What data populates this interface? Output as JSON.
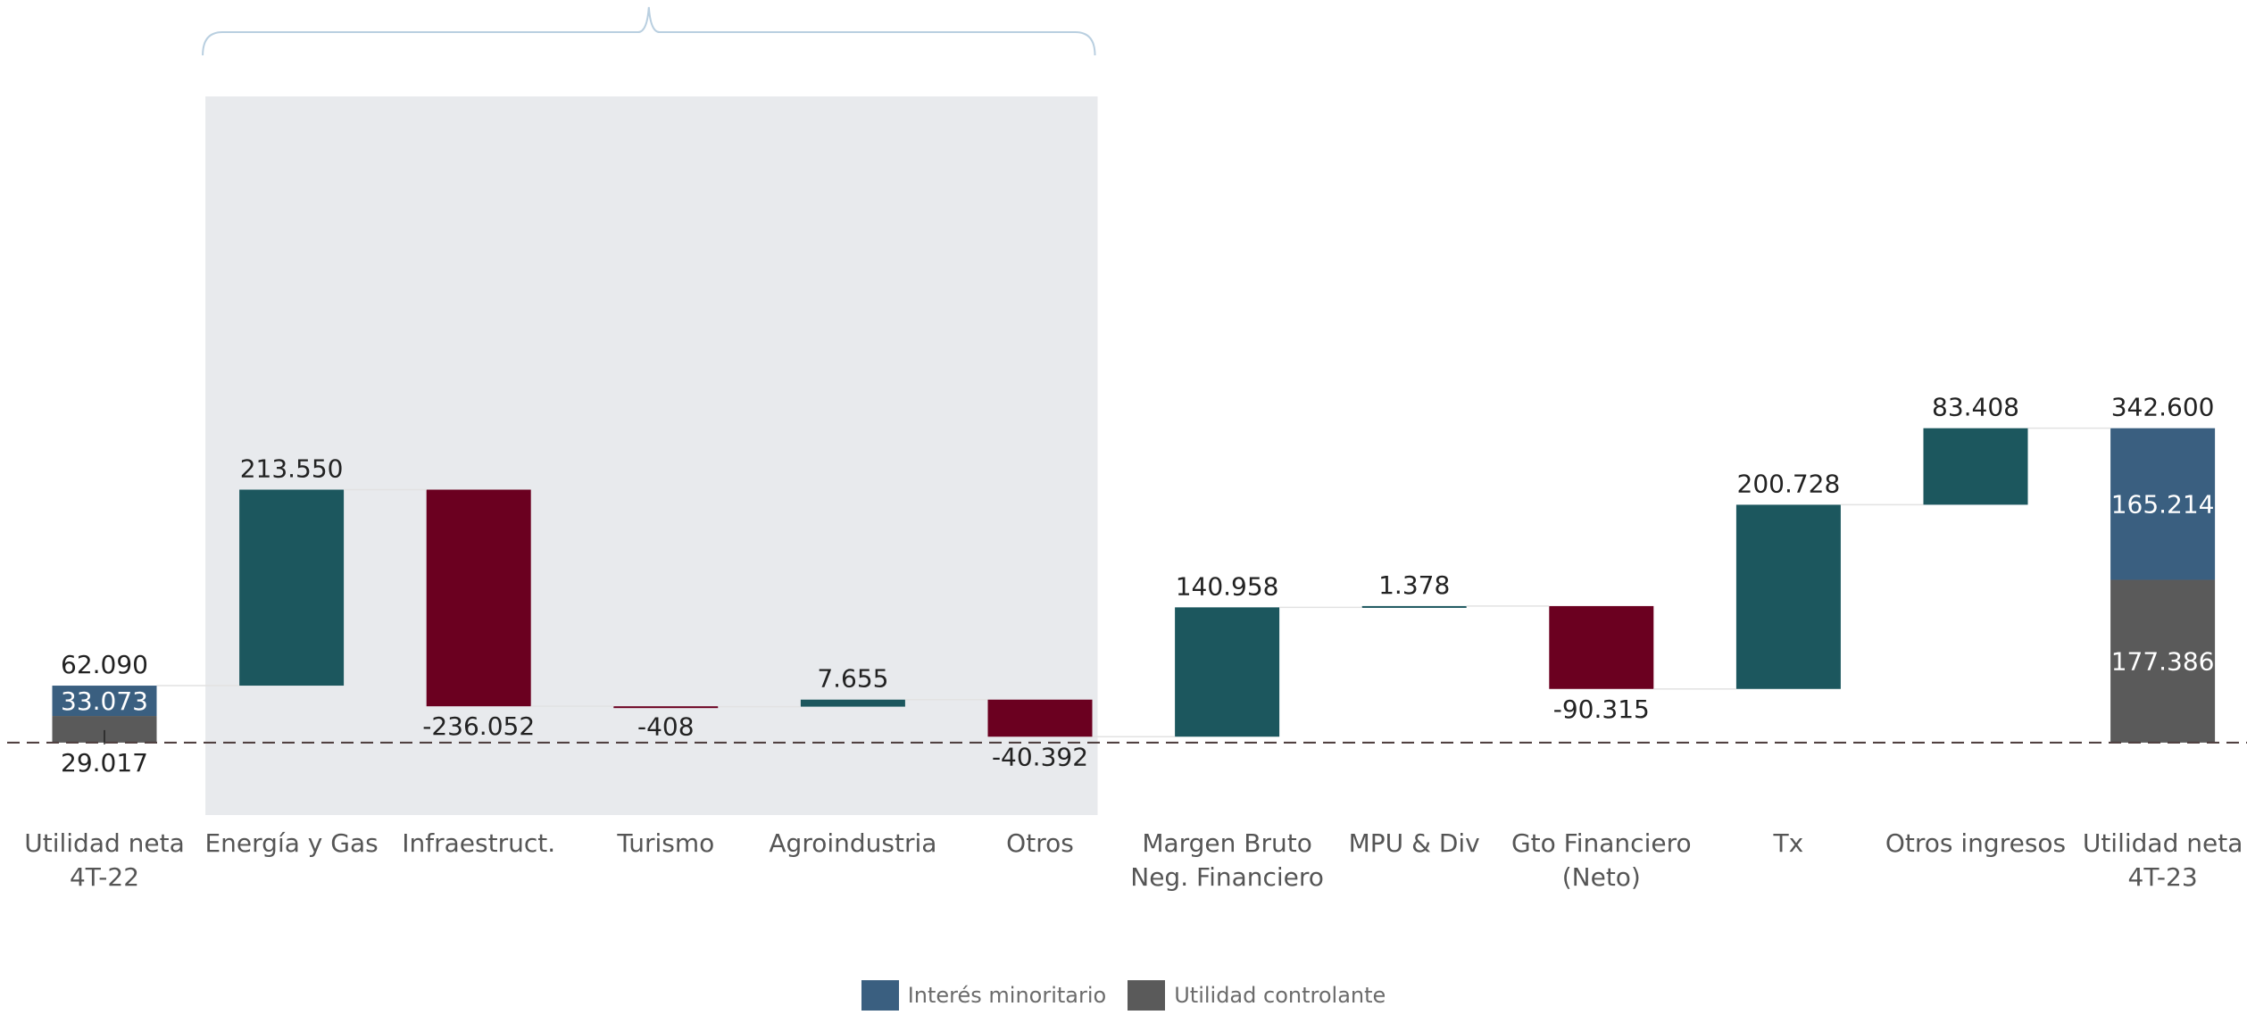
{
  "chart_data": {
    "type": "waterfall",
    "ylabel": "",
    "categories": [
      "Utilidad neta 4T-22",
      "Energía y Gas",
      "Infraestruct.",
      "Turismo",
      "Agroindustria",
      "Otros",
      "Margen Bruto Neg. Financiero",
      "MPU & Div",
      "Gto Financiero (Neto)",
      "Tx",
      "Otros ingresos",
      "Utilidad neta 4T-23"
    ],
    "category_labels": [
      [
        "Utilidad neta",
        "4T-22"
      ],
      [
        "Energía y Gas"
      ],
      [
        "Infraestruct."
      ],
      [
        "Turismo"
      ],
      [
        "Agroindustria"
      ],
      [
        "Otros"
      ],
      [
        "Margen Bruto",
        "Neg. Financiero"
      ],
      [
        "MPU & Div"
      ],
      [
        "Gto Financiero",
        "(Neto)"
      ],
      [
        "Tx"
      ],
      [
        "Otros ingresos"
      ],
      [
        "Utilidad neta",
        "4T-23"
      ]
    ],
    "steps": [
      {
        "kind": "total",
        "total": 62090,
        "total_label": "62.090",
        "parts": [
          {
            "series": "Utilidad controlante",
            "value": 29017,
            "label": "29.017"
          },
          {
            "series": "Interés minoritario",
            "value": 33073,
            "label": "33.073"
          }
        ]
      },
      {
        "kind": "delta",
        "value": 213550,
        "label": "213.550"
      },
      {
        "kind": "delta",
        "value": -236052,
        "label": "-236.052"
      },
      {
        "kind": "delta",
        "value": -408,
        "label": "-408"
      },
      {
        "kind": "delta",
        "value": 7655,
        "label": "7.655"
      },
      {
        "kind": "delta",
        "value": -40392,
        "label": "-40.392"
      },
      {
        "kind": "delta",
        "value": 140958,
        "label": "140.958"
      },
      {
        "kind": "delta",
        "value": 1378,
        "label": "1.378"
      },
      {
        "kind": "delta",
        "value": -90315,
        "label": "-90.315"
      },
      {
        "kind": "delta",
        "value": 200728,
        "label": "200.728"
      },
      {
        "kind": "delta",
        "value": 83408,
        "label": "83.408"
      },
      {
        "kind": "total",
        "total": 342600,
        "total_label": "342.600",
        "parts": [
          {
            "series": "Utilidad controlante",
            "value": 177386,
            "label": "177.386"
          },
          {
            "series": "Interés minoritario",
            "value": 165214,
            "label": "165.214"
          }
        ]
      }
    ],
    "highlight_group": {
      "from": 1,
      "to": 5,
      "bracket": true
    },
    "baseline_dashed": true,
    "ylim": [
      -40000,
      780000
    ],
    "colors": {
      "increase": "#1c575e",
      "decrease": "#6b0020",
      "Interés minoritario": "#3a5f80",
      "Utilidad controlante": "#5a5a5a",
      "highlight_bg": "#e8eaed",
      "label_on_bar": "#ffffff",
      "label": "#222222",
      "axis_label": "#555555"
    },
    "legend": {
      "position": "bottom-center",
      "items": [
        "Interés minoritario",
        "Utilidad controlante"
      ]
    }
  }
}
